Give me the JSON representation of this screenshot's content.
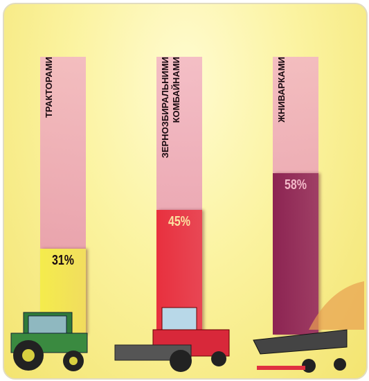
{
  "chart_data": {
    "type": "bar",
    "categories": [
      "ТРАКТОРАМИ",
      "ЗЕРНОЗБИРАЛЬНИМИ КОМБАЙНАМИ",
      "ЖНИВАРКАМИ"
    ],
    "values": [
      31,
      45,
      58
    ],
    "value_labels": [
      "31%",
      "45%",
      "58%"
    ],
    "colors": [
      "#f4ec4c",
      "#e8303e",
      "#8c2452"
    ],
    "ylim": [
      0,
      100
    ]
  }
}
